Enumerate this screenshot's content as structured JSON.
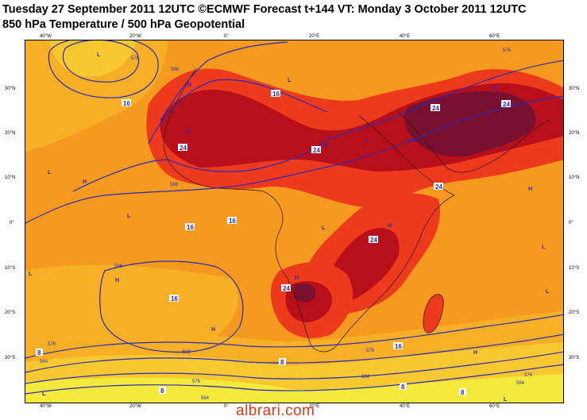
{
  "header": {
    "line1": "Tuesday 27 September 2011 12UTC ©ECMWF Forecast t+144 VT: Monday 3 October 2011 12UTC",
    "line2": "850 hPa Temperature / 500 hPa Geopotential"
  },
  "axes": {
    "lat_left": [
      "30°N",
      "20°N",
      "10°N",
      "0°",
      "10°S",
      "20°S",
      "30°S"
    ],
    "lat_right": [
      "30°N",
      "20°N",
      "10°N",
      "0°",
      "10°S",
      "20°S",
      "30°S"
    ],
    "lon_top": [
      "40°W",
      "20°W",
      "0°",
      "20°E",
      "40°E",
      "60°E"
    ],
    "lon_bottom": [
      "40°W",
      "20°W",
      "0°",
      "20°E",
      "40°E",
      "60°E"
    ]
  },
  "temperature_labels": [
    {
      "text": "16"
    },
    {
      "text": "16"
    },
    {
      "text": "16"
    },
    {
      "text": "16"
    },
    {
      "text": "16"
    },
    {
      "text": "16"
    },
    {
      "text": "24"
    },
    {
      "text": "24"
    },
    {
      "text": "24"
    },
    {
      "text": "24"
    },
    {
      "text": "24"
    },
    {
      "text": "24"
    },
    {
      "text": "24"
    },
    {
      "text": "8"
    },
    {
      "text": "8"
    },
    {
      "text": "8"
    },
    {
      "text": "8"
    },
    {
      "text": "8"
    }
  ],
  "contour_labels": [
    "576",
    "588",
    "588",
    "588",
    "588",
    "588",
    "576",
    "564",
    "576",
    "564",
    "576",
    "564",
    "576",
    "564",
    "576"
  ],
  "pressure_markers": [
    "H",
    "H",
    "H",
    "H",
    "H",
    "H",
    "H",
    "H",
    "H",
    "H",
    "H",
    "L",
    "L",
    "L",
    "L",
    "L",
    "L",
    "L",
    "L",
    "L",
    "L",
    "L",
    "L"
  ],
  "colors": {
    "background_orange": "#f59a1e",
    "light_orange": "#f7b026",
    "yellow_orange": "#f8c830",
    "yellow": "#f4ea3c",
    "red": "#ee3a1c",
    "dark_red": "#b8101a",
    "maroon": "#7a1030",
    "contour_blue": "#2a2ab8",
    "coastline": "#3a1a08"
  },
  "credit": "albrari.com"
}
